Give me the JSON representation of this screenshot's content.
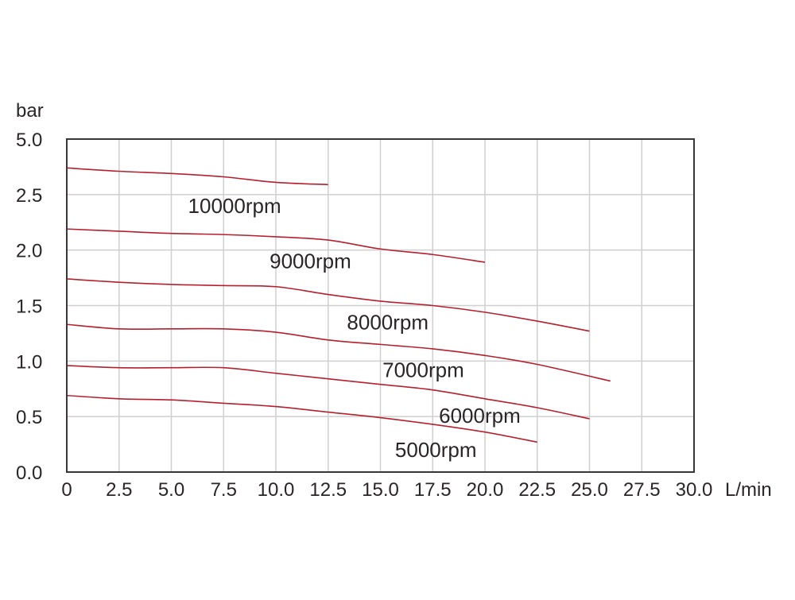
{
  "chart_data": {
    "type": "line",
    "title": "",
    "xlabel": "L/min",
    "ylabel": "bar",
    "xlim": [
      0,
      30
    ],
    "ylim_pixel_scale": [
      0,
      3.0
    ],
    "x_ticks": [
      "0",
      "2.5",
      "5.0",
      "7.5",
      "10.0",
      "12.5",
      "15.0",
      "17.5",
      "20.0",
      "22.5",
      "25.0",
      "27.5",
      "30.0"
    ],
    "y_ticks": [
      "0.0",
      "0.5",
      "1.0",
      "1.5",
      "2.0",
      "2.5",
      "5.0"
    ],
    "grid": true,
    "legend": "inline curve labels",
    "line_color": "#b5202e",
    "series": [
      {
        "name": "10000rpm",
        "x": [
          0,
          2.5,
          5,
          7.5,
          10,
          12.5
        ],
        "y": [
          2.74,
          2.71,
          2.69,
          2.66,
          2.61,
          2.59
        ],
        "label_pos": [
          5.8,
          2.4
        ]
      },
      {
        "name": "9000rpm",
        "x": [
          0,
          2.5,
          5,
          7.5,
          10,
          12.5,
          15,
          17.5,
          20
        ],
        "y": [
          2.19,
          2.17,
          2.15,
          2.14,
          2.12,
          2.09,
          2.01,
          1.96,
          1.89
        ],
        "label_pos": [
          9.7,
          1.9
        ]
      },
      {
        "name": "8000rpm",
        "x": [
          0,
          2.5,
          5,
          7.5,
          10,
          12.5,
          15,
          17.5,
          20,
          22.5,
          25
        ],
        "y": [
          1.74,
          1.71,
          1.69,
          1.68,
          1.67,
          1.6,
          1.54,
          1.5,
          1.44,
          1.36,
          1.27
        ],
        "label_pos": [
          13.4,
          1.35
        ]
      },
      {
        "name": "7000rpm",
        "x": [
          0,
          2.5,
          5,
          7.5,
          10,
          12.5,
          15,
          17.5,
          20,
          22.5,
          26
        ],
        "y": [
          1.33,
          1.29,
          1.29,
          1.29,
          1.26,
          1.19,
          1.15,
          1.11,
          1.05,
          0.97,
          0.82
        ],
        "label_pos": [
          15.1,
          0.92
        ]
      },
      {
        "name": "6000rpm",
        "x": [
          0,
          2.5,
          5,
          7.5,
          10,
          12.5,
          15,
          17.5,
          20,
          22.5,
          25
        ],
        "y": [
          0.96,
          0.94,
          0.94,
          0.94,
          0.89,
          0.84,
          0.79,
          0.74,
          0.66,
          0.58,
          0.48
        ],
        "label_pos": [
          17.8,
          0.51
        ]
      },
      {
        "name": "5000rpm",
        "x": [
          0,
          2.5,
          5,
          7.5,
          10,
          12.5,
          15,
          17.5,
          20,
          22.5
        ],
        "y": [
          0.69,
          0.66,
          0.65,
          0.62,
          0.59,
          0.54,
          0.49,
          0.43,
          0.36,
          0.27
        ],
        "label_pos": [
          15.7,
          0.2
        ]
      }
    ]
  }
}
